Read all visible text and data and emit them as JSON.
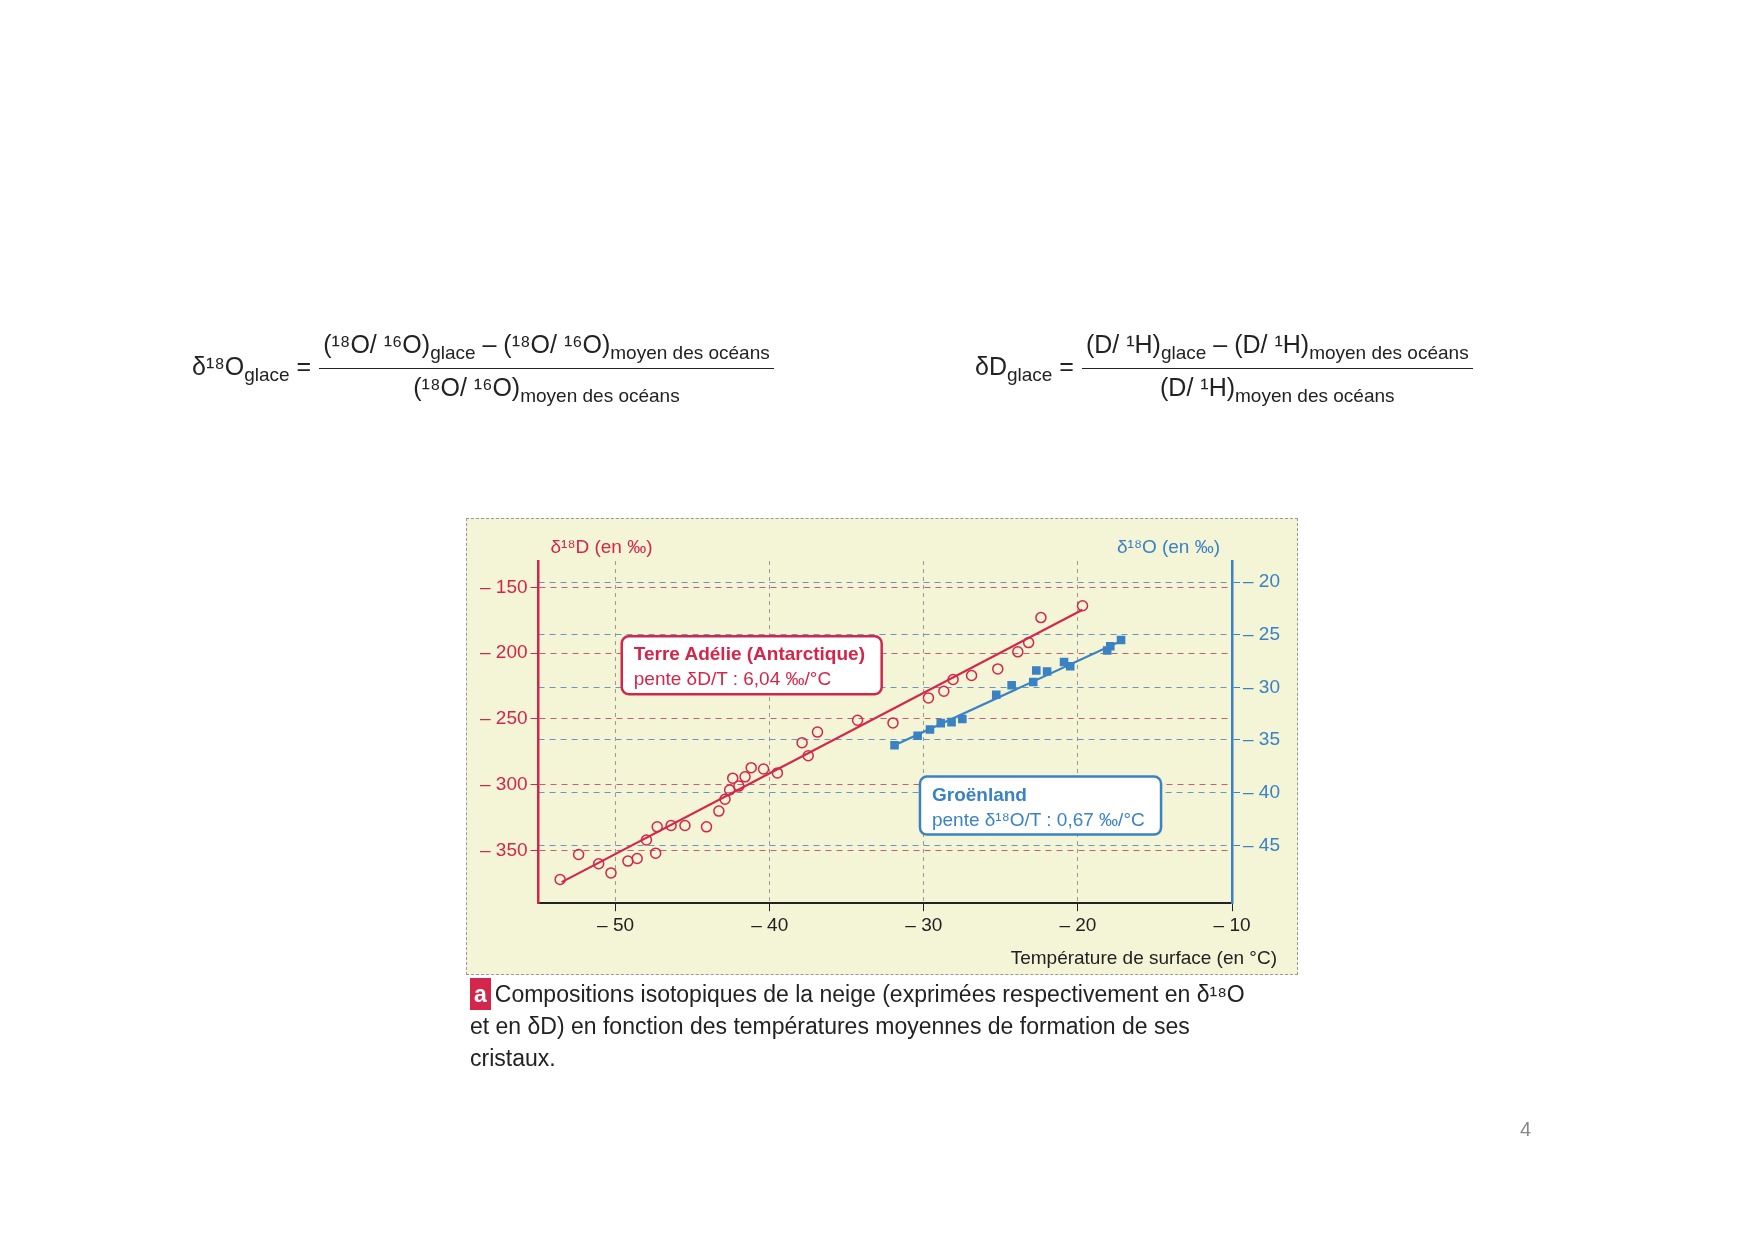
{
  "chart_data": {
    "type": "scatter",
    "xlabel": "Température de surface (en °C)",
    "ylabel": "δ¹⁸D (en ‰)",
    "y2label": "δ¹⁸O (en ‰)",
    "xlim": [
      -55,
      -10
    ],
    "xticks": [
      {
        "value": -50,
        "label": "– 50"
      },
      {
        "value": -40,
        "label": "– 40"
      },
      {
        "value": -30,
        "label": "– 30"
      },
      {
        "value": -20,
        "label": "– 20"
      },
      {
        "value": -10,
        "label": "– 10"
      }
    ],
    "ylim": [
      -390,
      -130
    ],
    "yticks": [
      {
        "value": -150,
        "label": "– 150"
      },
      {
        "value": -200,
        "label": "– 200"
      },
      {
        "value": -250,
        "label": "– 250"
      },
      {
        "value": -300,
        "label": "– 300"
      },
      {
        "value": -350,
        "label": "– 350"
      }
    ],
    "y2lim": [
      -50.5,
      -18
    ],
    "y2ticks": [
      {
        "value": -20,
        "label": "– 20"
      },
      {
        "value": -25,
        "label": "– 25"
      },
      {
        "value": -30,
        "label": "– 30"
      },
      {
        "value": -35,
        "label": "– 35"
      },
      {
        "value": -40,
        "label": "– 40"
      },
      {
        "value": -45,
        "label": "– 45"
      }
    ],
    "grid": true,
    "series": [
      {
        "name": "Terre Adélie (Antarctique)",
        "color": "#d4264a",
        "marker": "circle",
        "x": [
          -53.6,
          -52.4,
          -51.1,
          -50.3,
          -49.2,
          -48.6,
          -48.0,
          -47.4,
          -47.3,
          -46.4,
          -45.5,
          -44.1,
          -43.3,
          -42.9,
          -42.6,
          -42.4,
          -42.0,
          -41.6,
          -41.2,
          -40.4,
          -39.5,
          -37.9,
          -37.5,
          -36.9,
          -34.3,
          -32.0,
          -29.7,
          -28.7,
          -28.1,
          -26.9,
          -25.2,
          -23.9,
          -23.2,
          -22.4,
          -19.7
        ],
        "values": [
          -372,
          -353,
          -360,
          -367,
          -358,
          -356,
          -342,
          -352,
          -332,
          -331,
          -331,
          -332,
          -320,
          -311,
          -304,
          -295,
          -301,
          -294,
          -287,
          -288,
          -291,
          -268,
          -278,
          -260,
          -251,
          -253,
          -234,
          -229,
          -220,
          -217,
          -212,
          -199,
          -192,
          -173,
          -164
        ]
      },
      {
        "name": "Groënland",
        "color": "#3a82c4",
        "marker": "square",
        "axis": "y2",
        "x": [
          -31.9,
          -30.4,
          -29.6,
          -28.9,
          -28.2,
          -27.5,
          -25.3,
          -24.3,
          -22.9,
          -22.7,
          -22.0,
          -20.9,
          -20.5,
          -18.1,
          -17.9,
          -17.2
        ],
        "values": [
          -35.5,
          -34.6,
          -34.0,
          -33.4,
          -33.3,
          -33.0,
          -30.7,
          -29.8,
          -29.5,
          -28.4,
          -28.5,
          -27.6,
          -28.0,
          -26.5,
          -26.1,
          -25.5
        ]
      },
      {
        "type": "line",
        "color": "#d4264a",
        "marker": "none",
        "x": [
          -53.5,
          -19.7
        ],
        "values": [
          -374,
          -167
        ]
      },
      {
        "type": "line",
        "color": "#3a82c4",
        "marker": "none",
        "axis": "y2",
        "x": [
          -31.9,
          -17.2
        ],
        "values": [
          -35.5,
          -25.6
        ]
      }
    ],
    "annotations": [
      "δ¹⁸O$_{glace}$ =",
      "(¹⁸O/ ¹⁶O)$_{glace}$ – (¹⁸O/ ¹⁶O)$_{moyen des océans}$",
      "(¹⁸O/ ¹⁶O)$_{moyen des océans}$",
      "δD$_{glace}$ =",
      "(D/ ¹H)$_{glace}$ – (D/ ¹H)$_{moyen des océans}$",
      "(D/ ¹H)$_{moyen des océans}$",
      "pente δD/T : 6,04 ‰/°C",
      "pente δ¹⁸O/T : 0,67 ‰/°C",
      "a",
      "Compositions isotopiques de la neige (exprimées respectivement en δ¹⁸O et en δD) en fonction des températures moyennes de formation de ses cristaux.",
      "4"
    ]
  }
}
